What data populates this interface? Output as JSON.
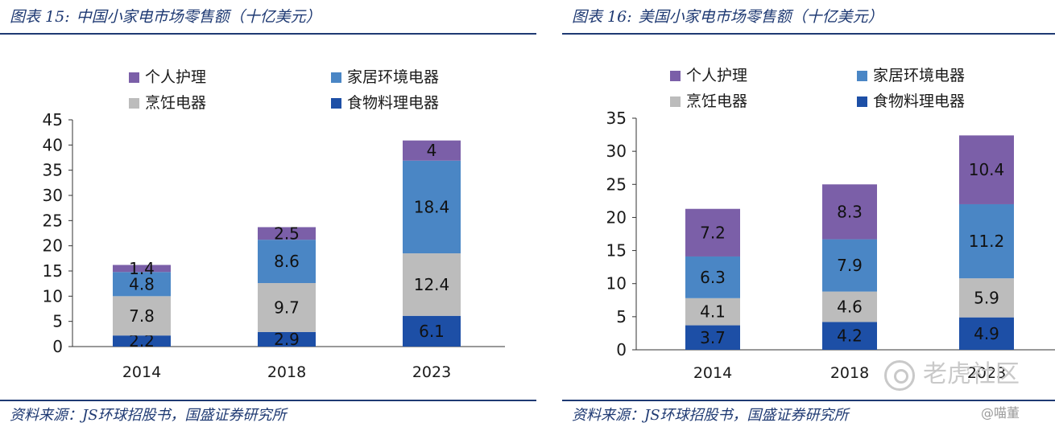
{
  "charts": [
    {
      "title_num": "图表 15:",
      "title": "中国小家电市场零售额（十亿美元）",
      "source": "资料来源：JS环球招股书，国盛证券研究所"
    },
    {
      "title_num": "图表 16:",
      "title": "美国小家电市场零售额（十亿美元）",
      "source": "资料来源：JS环球招股书，国盛证券研究所"
    }
  ],
  "watermark": {
    "logo_text": "老虎社区",
    "user": "@喵董"
  },
  "colors": {
    "personal_care": "#7b5fa8",
    "home_env": "#4a86c5",
    "cooking": "#bcbcbc",
    "food_prep": "#1d4fa6",
    "axis": "#333333"
  },
  "chart_data": [
    {
      "type": "bar",
      "stacked": true,
      "title": "中国小家电市场零售额（十亿美元）",
      "categories": [
        "2014",
        "2018",
        "2023"
      ],
      "ylim": [
        0,
        45
      ],
      "yticks": [
        0,
        5,
        10,
        15,
        20,
        25,
        30,
        35,
        40,
        45
      ],
      "legend_order": [
        "个人护理",
        "家居环境电器",
        "烹饪电器",
        "食物料理电器"
      ],
      "series": [
        {
          "name": "食物料理电器",
          "key": "food_prep",
          "values": [
            2.2,
            2.9,
            6.1
          ]
        },
        {
          "name": "烹饪电器",
          "key": "cooking",
          "values": [
            7.8,
            9.7,
            12.4
          ]
        },
        {
          "name": "家居环境电器",
          "key": "home_env",
          "values": [
            4.8,
            8.6,
            18.4
          ]
        },
        {
          "name": "个人护理",
          "key": "personal_care",
          "values": [
            1.4,
            2.5,
            4
          ]
        }
      ]
    },
    {
      "type": "bar",
      "stacked": true,
      "title": "美国小家电市场零售额（十亿美元）",
      "categories": [
        "2014",
        "2018",
        "2023"
      ],
      "ylim": [
        0,
        35
      ],
      "yticks": [
        0,
        5,
        10,
        15,
        20,
        25,
        30,
        35
      ],
      "legend_order": [
        "个人护理",
        "家居环境电器",
        "烹饪电器",
        "食物料理电器"
      ],
      "series": [
        {
          "name": "食物料理电器",
          "key": "food_prep",
          "values": [
            3.7,
            4.2,
            4.9
          ]
        },
        {
          "name": "烹饪电器",
          "key": "cooking",
          "values": [
            4.1,
            4.6,
            5.9
          ]
        },
        {
          "name": "家居环境电器",
          "key": "home_env",
          "values": [
            6.3,
            7.9,
            11.2
          ]
        },
        {
          "name": "个人护理",
          "key": "personal_care",
          "values": [
            7.2,
            8.3,
            10.4
          ]
        }
      ]
    }
  ]
}
